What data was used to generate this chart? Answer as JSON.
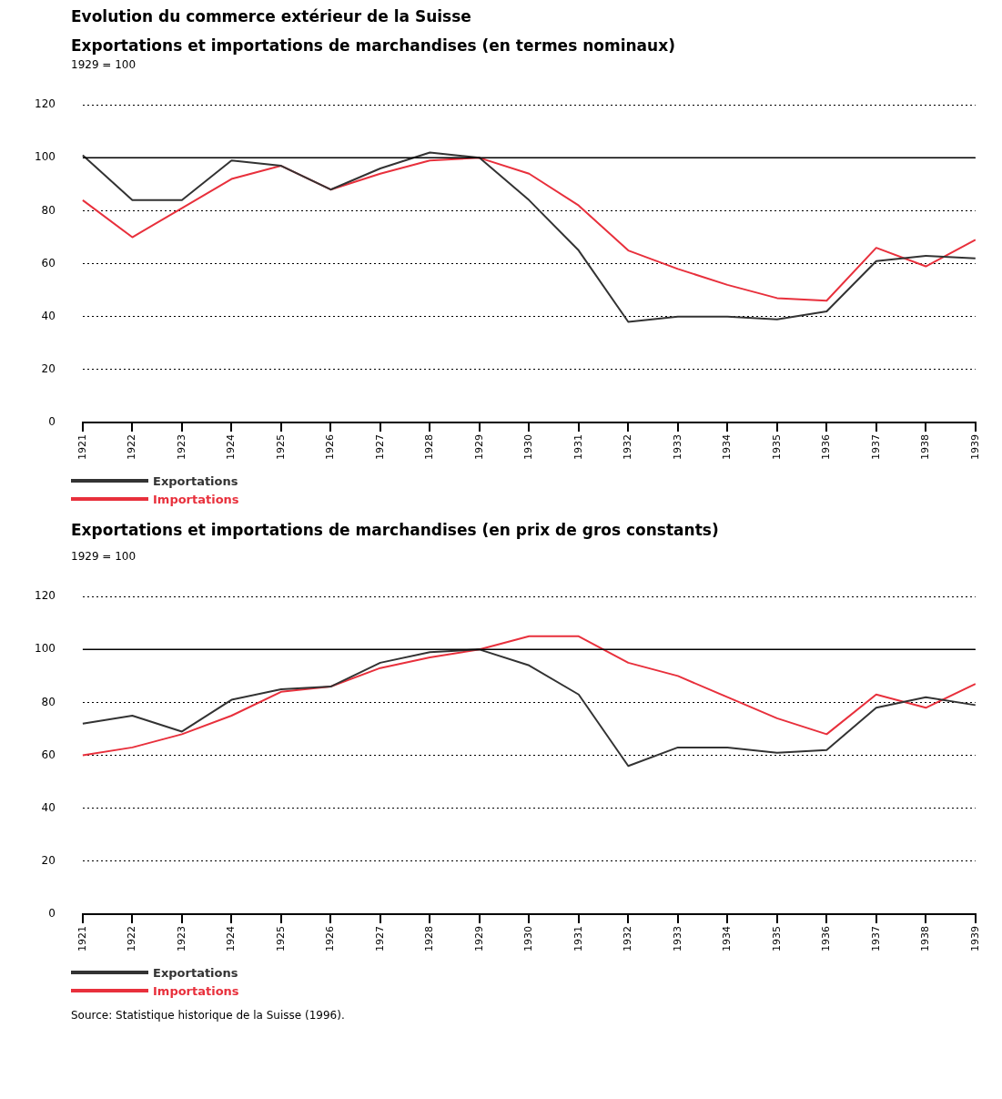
{
  "chart_data": [
    {
      "type": "line",
      "title": "Evolution du commerce extérieur de la Suisse",
      "subtitle": "Exportations et importations de marchandises (en termes nominaux)",
      "ylabel": "1929 = 100",
      "categories": [
        "1921",
        "1922",
        "1923",
        "1924",
        "1925",
        "1926",
        "1927",
        "1928",
        "1929",
        "1930",
        "1931",
        "1932",
        "1933",
        "1934",
        "1935",
        "1936",
        "1937",
        "1938",
        "1939"
      ],
      "series": [
        {
          "name": "Exportations",
          "color": "#333333",
          "values": [
            101,
            84,
            84,
            99,
            97,
            88,
            96,
            102,
            100,
            84,
            65,
            38,
            40,
            40,
            39,
            42,
            61,
            63,
            62
          ]
        },
        {
          "name": "Importations",
          "color": "#e8303c",
          "values": [
            84,
            70,
            81,
            92,
            97,
            88,
            94,
            99,
            100,
            94,
            82,
            65,
            58,
            52,
            47,
            46,
            66,
            59,
            69
          ]
        }
      ],
      "ylim": [
        0,
        120
      ],
      "yticks": [
        0,
        20,
        40,
        60,
        80,
        100,
        120
      ],
      "grid": "y",
      "legend": "bottom",
      "marker": "none",
      "line_style": "solid",
      "ref_lines": [
        {
          "axis": "y",
          "value": 100,
          "color": "#000000"
        }
      ]
    },
    {
      "type": "line",
      "title": "Exportations et importations de marchandises (en prix de gros constants)",
      "ylabel": "1929 = 100",
      "categories": [
        "1921",
        "1922",
        "1923",
        "1924",
        "1925",
        "1926",
        "1927",
        "1928",
        "1929",
        "1930",
        "1931",
        "1932",
        "1933",
        "1934",
        "1935",
        "1936",
        "1937",
        "1938",
        "1939"
      ],
      "series": [
        {
          "name": "Exportations",
          "color": "#333333",
          "values": [
            72,
            75,
            69,
            81,
            85,
            86,
            95,
            99,
            100,
            94,
            83,
            56,
            63,
            63,
            61,
            62,
            78,
            82,
            79
          ]
        },
        {
          "name": "Importations",
          "color": "#e8303c",
          "values": [
            60,
            63,
            68,
            75,
            84,
            86,
            93,
            97,
            100,
            105,
            105,
            95,
            90,
            82,
            74,
            68,
            83,
            78,
            87
          ]
        }
      ],
      "ylim": [
        0,
        120
      ],
      "yticks": [
        0,
        20,
        40,
        60,
        80,
        100,
        120
      ],
      "grid": "y",
      "legend": "bottom",
      "marker": "none",
      "line_style": "solid",
      "ref_lines": [
        {
          "axis": "y",
          "value": 100,
          "color": "#000000"
        }
      ],
      "annotations": [
        "Source: Statistique historique de la Suisse (1996)."
      ]
    }
  ]
}
